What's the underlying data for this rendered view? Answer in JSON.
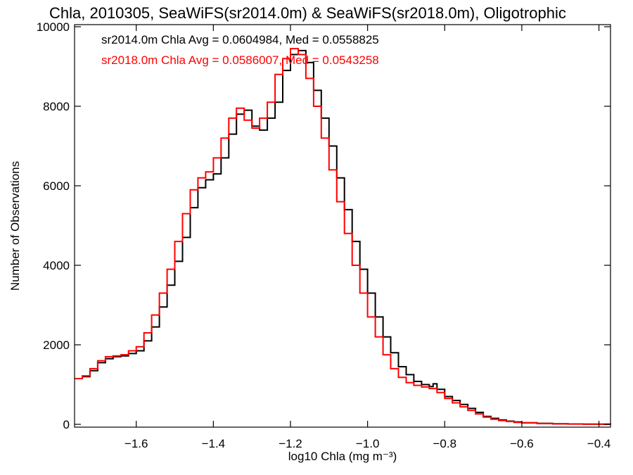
{
  "chart_data": {
    "type": "line",
    "step": true,
    "title": "Chla, 2010305, SeaWiFS(sr2014.0m) & SeaWiFS(sr2018.0m), Oligotrophic",
    "xlabel": "log10 Chla (mg m⁻³)",
    "ylabel": "Number of Observations",
    "xlim": [
      -1.76,
      -0.37
    ],
    "ylim": [
      0,
      10000
    ],
    "grid": false,
    "xticks": [
      {
        "value": -1.6,
        "label": "−1.6"
      },
      {
        "value": -1.4,
        "label": "−1.4"
      },
      {
        "value": -1.2,
        "label": "−1.2"
      },
      {
        "value": -1.0,
        "label": "−1.0"
      },
      {
        "value": -0.8,
        "label": "−0.8"
      },
      {
        "value": -0.6,
        "label": "−0.6"
      },
      {
        "value": -0.4,
        "label": "−0.4"
      }
    ],
    "yticks": [
      {
        "value": 0,
        "label": "0"
      },
      {
        "value": 2000,
        "label": "2000"
      },
      {
        "value": 4000,
        "label": "4000"
      },
      {
        "value": 6000,
        "label": "6000"
      },
      {
        "value": 8000,
        "label": "8000"
      },
      {
        "value": 10000,
        "label": "10000"
      }
    ],
    "annotations": [
      {
        "text": "sr2014.0m Chla Avg = 0.0604984, Med = 0.0558825",
        "color": "#000000"
      },
      {
        "text": "sr2018.0m Chla Avg = 0.0586007, Med = 0.0543258",
        "color": "#ff0000"
      }
    ],
    "series": [
      {
        "name": "sr2014.0m",
        "color": "#000000",
        "points": [
          [
            -1.76,
            1150
          ],
          [
            -1.74,
            1200
          ],
          [
            -1.72,
            1350
          ],
          [
            -1.7,
            1550
          ],
          [
            -1.68,
            1650
          ],
          [
            -1.66,
            1700
          ],
          [
            -1.64,
            1720
          ],
          [
            -1.62,
            1780
          ],
          [
            -1.6,
            1850
          ],
          [
            -1.58,
            2100
          ],
          [
            -1.56,
            2450
          ],
          [
            -1.54,
            2950
          ],
          [
            -1.52,
            3500
          ],
          [
            -1.5,
            4100
          ],
          [
            -1.48,
            4700
          ],
          [
            -1.46,
            5450
          ],
          [
            -1.44,
            5950
          ],
          [
            -1.42,
            6150
          ],
          [
            -1.4,
            6300
          ],
          [
            -1.38,
            6700
          ],
          [
            -1.36,
            7300
          ],
          [
            -1.34,
            7800
          ],
          [
            -1.32,
            7900
          ],
          [
            -1.3,
            7500
          ],
          [
            -1.28,
            7400
          ],
          [
            -1.26,
            7700
          ],
          [
            -1.24,
            8100
          ],
          [
            -1.22,
            8900
          ],
          [
            -1.2,
            9300
          ],
          [
            -1.18,
            9400
          ],
          [
            -1.16,
            9100
          ],
          [
            -1.14,
            8400
          ],
          [
            -1.12,
            7700
          ],
          [
            -1.1,
            7000
          ],
          [
            -1.08,
            6200
          ],
          [
            -1.06,
            5400
          ],
          [
            -1.04,
            4600
          ],
          [
            -1.02,
            3900
          ],
          [
            -1.0,
            3300
          ],
          [
            -0.98,
            2700
          ],
          [
            -0.96,
            2200
          ],
          [
            -0.94,
            1800
          ],
          [
            -0.92,
            1450
          ],
          [
            -0.9,
            1250
          ],
          [
            -0.88,
            1080
          ],
          [
            -0.86,
            1000
          ],
          [
            -0.84,
            950
          ],
          [
            -0.83,
            1020
          ],
          [
            -0.82,
            880
          ],
          [
            -0.8,
            700
          ],
          [
            -0.78,
            600
          ],
          [
            -0.76,
            500
          ],
          [
            -0.74,
            400
          ],
          [
            -0.72,
            300
          ],
          [
            -0.7,
            200
          ],
          [
            -0.68,
            150
          ],
          [
            -0.66,
            110
          ],
          [
            -0.64,
            80
          ],
          [
            -0.62,
            60
          ],
          [
            -0.6,
            40
          ],
          [
            -0.56,
            25
          ],
          [
            -0.52,
            15
          ],
          [
            -0.48,
            8
          ],
          [
            -0.44,
            5
          ],
          [
            -0.4,
            3
          ],
          [
            -0.37,
            2
          ]
        ]
      },
      {
        "name": "sr2018.0m",
        "color": "#ff0000",
        "points": [
          [
            -1.76,
            1150
          ],
          [
            -1.74,
            1220
          ],
          [
            -1.72,
            1400
          ],
          [
            -1.7,
            1600
          ],
          [
            -1.68,
            1700
          ],
          [
            -1.66,
            1720
          ],
          [
            -1.64,
            1750
          ],
          [
            -1.62,
            1850
          ],
          [
            -1.6,
            1950
          ],
          [
            -1.58,
            2300
          ],
          [
            -1.56,
            2750
          ],
          [
            -1.54,
            3300
          ],
          [
            -1.52,
            3900
          ],
          [
            -1.5,
            4600
          ],
          [
            -1.48,
            5300
          ],
          [
            -1.46,
            5900
          ],
          [
            -1.44,
            6200
          ],
          [
            -1.42,
            6350
          ],
          [
            -1.4,
            6700
          ],
          [
            -1.38,
            7200
          ],
          [
            -1.36,
            7700
          ],
          [
            -1.34,
            7950
          ],
          [
            -1.32,
            7650
          ],
          [
            -1.3,
            7450
          ],
          [
            -1.28,
            7700
          ],
          [
            -1.26,
            8100
          ],
          [
            -1.24,
            8800
          ],
          [
            -1.22,
            9200
          ],
          [
            -1.2,
            9450
          ],
          [
            -1.18,
            9300
          ],
          [
            -1.16,
            8700
          ],
          [
            -1.14,
            8000
          ],
          [
            -1.12,
            7200
          ],
          [
            -1.1,
            6400
          ],
          [
            -1.08,
            5600
          ],
          [
            -1.06,
            4800
          ],
          [
            -1.04,
            4000
          ],
          [
            -1.02,
            3300
          ],
          [
            -1.0,
            2700
          ],
          [
            -0.98,
            2200
          ],
          [
            -0.96,
            1750
          ],
          [
            -0.94,
            1400
          ],
          [
            -0.92,
            1180
          ],
          [
            -0.9,
            1050
          ],
          [
            -0.88,
            980
          ],
          [
            -0.86,
            940
          ],
          [
            -0.84,
            900
          ],
          [
            -0.82,
            800
          ],
          [
            -0.8,
            650
          ],
          [
            -0.78,
            540
          ],
          [
            -0.76,
            440
          ],
          [
            -0.74,
            350
          ],
          [
            -0.72,
            260
          ],
          [
            -0.7,
            180
          ],
          [
            -0.68,
            130
          ],
          [
            -0.66,
            95
          ],
          [
            -0.64,
            70
          ],
          [
            -0.62,
            50
          ],
          [
            -0.6,
            35
          ],
          [
            -0.56,
            20
          ],
          [
            -0.52,
            12
          ],
          [
            -0.48,
            7
          ],
          [
            -0.44,
            4
          ],
          [
            -0.4,
            2
          ],
          [
            -0.37,
            1
          ]
        ]
      }
    ]
  }
}
